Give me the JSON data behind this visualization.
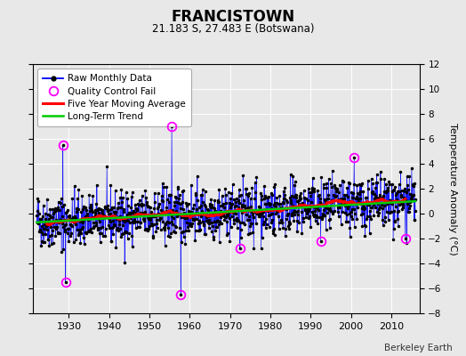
{
  "title": "FRANCISTOWN",
  "subtitle": "21.183 S, 27.483 E (Botswana)",
  "ylabel": "Temperature Anomaly (°C)",
  "credit": "Berkeley Earth",
  "year_start": 1922,
  "year_end": 2016,
  "ylim": [
    -8,
    12
  ],
  "yticks": [
    -8,
    -6,
    -4,
    -2,
    0,
    2,
    4,
    6,
    8,
    10,
    12
  ],
  "xticks": [
    1930,
    1940,
    1950,
    1960,
    1970,
    1980,
    1990,
    2000,
    2010
  ],
  "bg_color": "#e8e8e8",
  "plot_bg_color": "#e8e8e8",
  "raw_line_color": "#0000ff",
  "raw_marker_color": "#000000",
  "moving_avg_color": "#ff0000",
  "trend_color": "#00cc00",
  "qc_fail_color": "#ff00ff",
  "grid_color": "#ffffff",
  "trend_slope": 0.018,
  "trend_intercept": -0.7,
  "noise_std": 1.05,
  "spike_times": [
    1928.5,
    1929.2,
    1955.5,
    1957.8,
    1972.5,
    1992.5,
    2000.8,
    2013.5
  ],
  "spike_vals": [
    5.5,
    -5.5,
    7.0,
    -6.5,
    -2.8,
    -2.2,
    4.5,
    -2.0
  ],
  "legend_items": [
    "Raw Monthly Data",
    "Quality Control Fail",
    "Five Year Moving Average",
    "Long-Term Trend"
  ]
}
